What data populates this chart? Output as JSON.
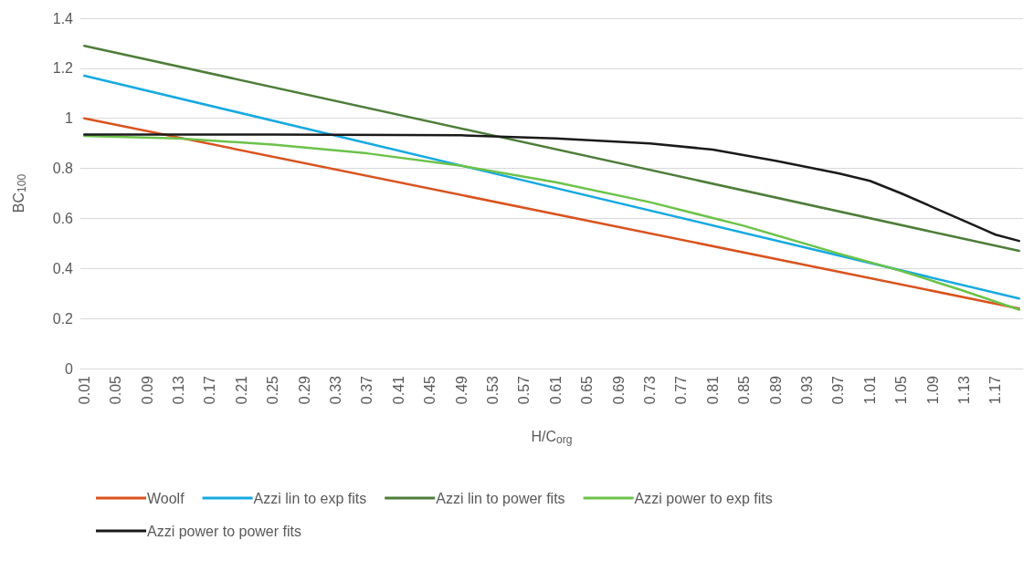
{
  "chart_data": {
    "type": "line",
    "xlabel": "H/C$_{org}$",
    "ylabel": "BC$_{100}$",
    "xlim": [
      0.005,
      1.205
    ],
    "ylim": [
      0,
      1.4
    ],
    "xticks": [
      0.01,
      0.05,
      0.09,
      0.13,
      0.17,
      0.21,
      0.25,
      0.29,
      0.33,
      0.37,
      0.41,
      0.45,
      0.49,
      0.53,
      0.57,
      0.61,
      0.65,
      0.69,
      0.73,
      0.77,
      0.81,
      0.85,
      0.89,
      0.93,
      0.97,
      1.01,
      1.05,
      1.09,
      1.13,
      1.17
    ],
    "yticks": [
      0,
      0.2,
      0.4,
      0.6,
      0.8,
      1,
      1.2,
      1.4
    ],
    "grid": "y",
    "legend": "bottom",
    "marker": "none",
    "line_style": "solid",
    "series": [
      {
        "name": "Woolf",
        "color": "#d9531e",
        "x": [
          0.01,
          1.2
        ],
        "values": [
          1.0,
          0.24
        ]
      },
      {
        "name": "Azzi lin to exp fits",
        "color": "#16a9e1",
        "x": [
          0.01,
          1.2
        ],
        "values": [
          1.17,
          0.28
        ]
      },
      {
        "name": "Azzi lin to power fits",
        "color": "#4e7d3a",
        "x": [
          0.01,
          1.2
        ],
        "values": [
          1.29,
          0.47
        ]
      },
      {
        "name": "Azzi power to exp fits",
        "color": "#6cc24a",
        "x": [
          0.01,
          0.13,
          0.25,
          0.37,
          0.49,
          0.61,
          0.73,
          0.85,
          0.97,
          1.05,
          1.13,
          1.2
        ],
        "values": [
          0.93,
          0.92,
          0.895,
          0.86,
          0.81,
          0.745,
          0.665,
          0.57,
          0.46,
          0.39,
          0.31,
          0.235
        ]
      },
      {
        "name": "Azzi power to power fits",
        "color": "#1a1a1a",
        "x": [
          0.01,
          0.25,
          0.49,
          0.61,
          0.73,
          0.81,
          0.89,
          0.97,
          1.01,
          1.05,
          1.09,
          1.13,
          1.17,
          1.2
        ],
        "values": [
          0.935,
          0.935,
          0.932,
          0.92,
          0.9,
          0.875,
          0.83,
          0.78,
          0.75,
          0.7,
          0.645,
          0.59,
          0.535,
          0.51
        ]
      }
    ]
  }
}
